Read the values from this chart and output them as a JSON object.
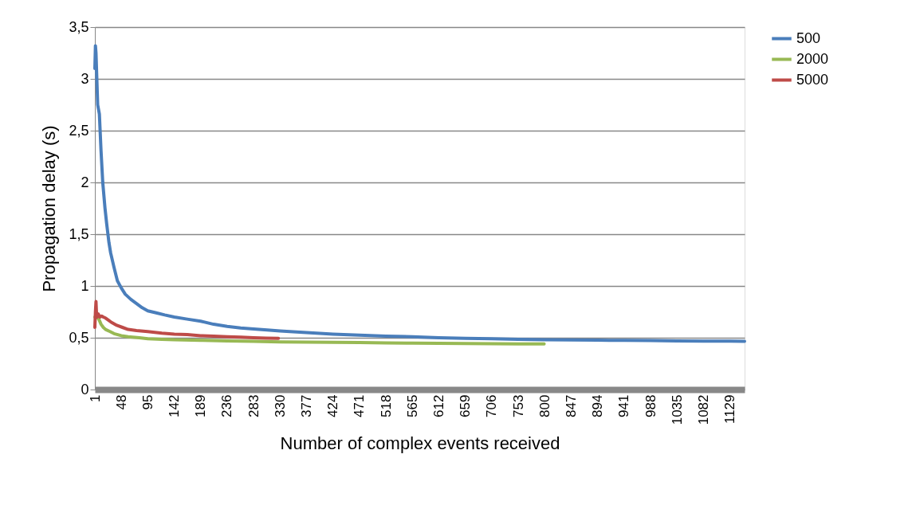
{
  "chart_data": {
    "type": "line",
    "xlabel": "Number of complex events received",
    "ylabel": "Propagation delay (s)",
    "xlim": [
      1,
      1155
    ],
    "xticks": [
      1,
      48,
      95,
      142,
      189,
      236,
      283,
      330,
      377,
      424,
      471,
      518,
      565,
      612,
      659,
      706,
      753,
      800,
      847,
      894,
      941,
      988,
      1035,
      1082,
      1129
    ],
    "ylim": [
      0,
      3.5
    ],
    "yticks": [
      0,
      {
        "value": 0.5,
        "label": "0,5"
      },
      1,
      {
        "value": 1.5,
        "label": "1,5"
      },
      2,
      {
        "value": 2.5,
        "label": "2,5"
      },
      3,
      {
        "value": 3.5,
        "label": "3,5"
      }
    ],
    "grid": "y",
    "legend": "right",
    "marker": "none",
    "line_style": "solid",
    "series": [
      {
        "name": "500",
        "color": "#4a7ebb",
        "x": [
          1,
          2,
          3,
          6,
          9,
          12,
          15,
          19,
          22,
          26,
          29,
          35,
          41,
          48,
          55,
          65,
          75,
          85,
          95,
          110,
          125,
          142,
          165,
          189,
          212,
          236,
          260,
          283,
          307,
          330,
          377,
          424,
          471,
          518,
          565,
          612,
          659,
          706,
          753,
          800,
          847,
          894,
          941,
          988,
          1035,
          1082,
          1129,
          1155
        ],
        "values": [
          3.1,
          3.32,
          3.25,
          2.75,
          2.66,
          2.3,
          2.0,
          1.75,
          1.6,
          1.42,
          1.32,
          1.18,
          1.05,
          0.98,
          0.92,
          0.87,
          0.83,
          0.79,
          0.76,
          0.74,
          0.72,
          0.7,
          0.68,
          0.66,
          0.63,
          0.61,
          0.595,
          0.585,
          0.575,
          0.565,
          0.55,
          0.535,
          0.525,
          0.515,
          0.51,
          0.5,
          0.495,
          0.49,
          0.485,
          0.48,
          0.478,
          0.476,
          0.475,
          0.473,
          0.47,
          0.468,
          0.467,
          0.465
        ]
      },
      {
        "name": "2000",
        "color": "#98b954",
        "x": [
          1,
          4,
          8,
          12,
          16,
          20,
          28,
          35,
          48,
          60,
          80,
          95,
          120,
          142,
          189,
          236,
          283,
          330,
          377,
          424,
          471,
          518,
          565,
          612,
          659,
          706,
          753,
          799
        ],
        "values": [
          0.7,
          0.7,
          0.68,
          0.63,
          0.6,
          0.58,
          0.56,
          0.54,
          0.52,
          0.51,
          0.5,
          0.49,
          0.485,
          0.48,
          0.475,
          0.47,
          0.465,
          0.46,
          0.458,
          0.455,
          0.453,
          0.45,
          0.448,
          0.446,
          0.445,
          0.443,
          0.44,
          0.44
        ]
      },
      {
        "name": "5000",
        "color": "#be4b48",
        "x": [
          1,
          2,
          3,
          4,
          5,
          7,
          10,
          13,
          16,
          20,
          25,
          30,
          40,
          50,
          60,
          75,
          95,
          120,
          142,
          165,
          189,
          212,
          236,
          260,
          283,
          305,
          327
        ],
        "values": [
          0.6,
          0.75,
          0.85,
          0.72,
          0.7,
          0.73,
          0.7,
          0.71,
          0.7,
          0.69,
          0.67,
          0.65,
          0.62,
          0.6,
          0.58,
          0.57,
          0.56,
          0.545,
          0.535,
          0.53,
          0.52,
          0.515,
          0.51,
          0.505,
          0.5,
          0.497,
          0.495
        ]
      }
    ]
  }
}
